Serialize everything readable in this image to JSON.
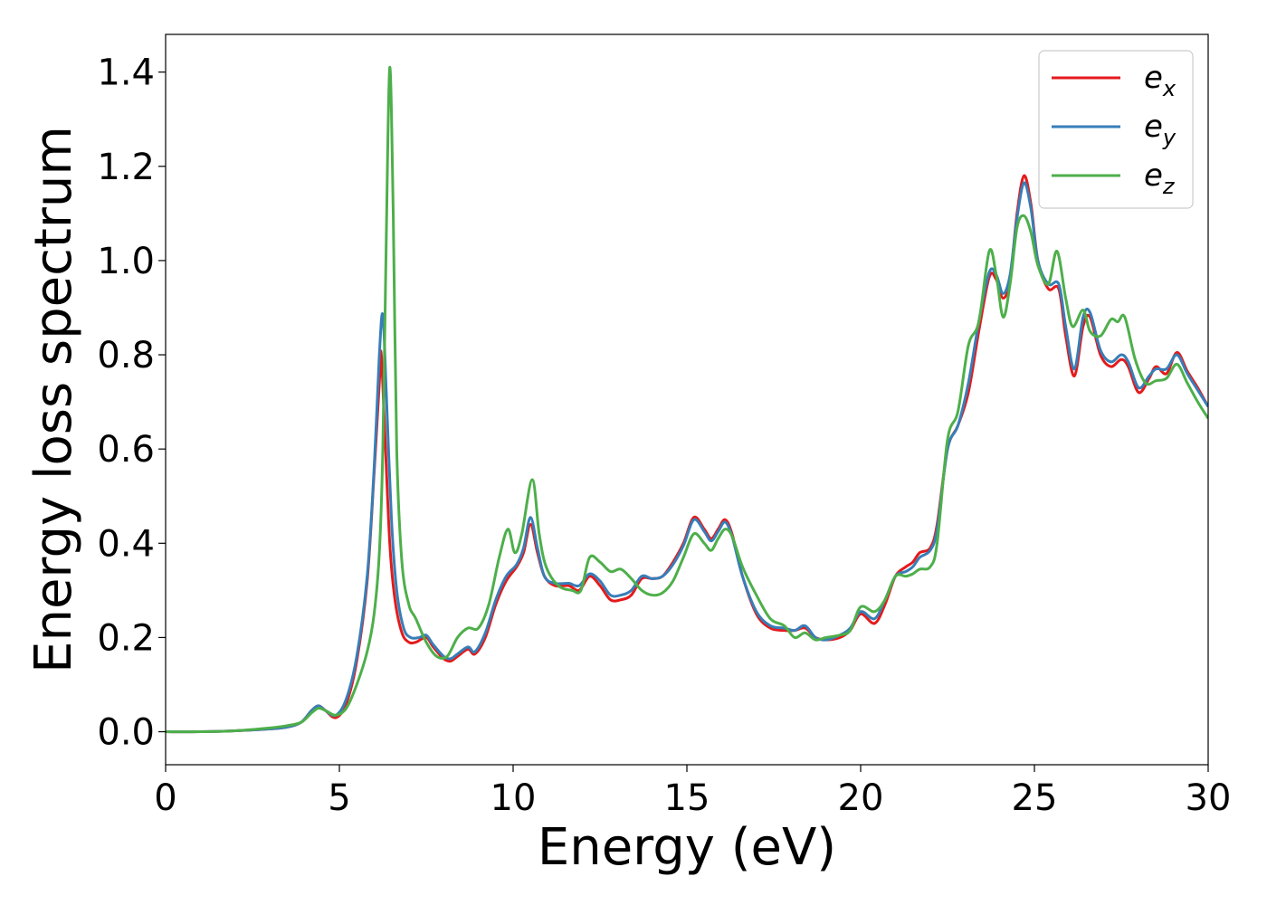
{
  "chart_data": {
    "type": "line",
    "title": "",
    "xlabel": "Energy (eV)",
    "ylabel": "Energy loss spectrum",
    "xlim": [
      0,
      30
    ],
    "ylim": [
      -0.07,
      1.48
    ],
    "xticks": [
      "0",
      "5",
      "10",
      "15",
      "20",
      "25",
      "30"
    ],
    "yticks": [
      "0.0",
      "0.2",
      "0.4",
      "0.6",
      "0.8",
      "1.0",
      "1.2",
      "1.4"
    ],
    "grid": false,
    "legend_position": "top-right",
    "series": [
      {
        "name": "e_x",
        "label_base": "e",
        "label_sub": "x",
        "color": "#e41a1c",
        "points": [
          [
            0,
            0.0
          ],
          [
            1,
            0.0
          ],
          [
            2,
            0.002
          ],
          [
            3,
            0.006
          ],
          [
            3.5,
            0.01
          ],
          [
            3.9,
            0.02
          ],
          [
            4.2,
            0.045
          ],
          [
            4.4,
            0.055
          ],
          [
            4.6,
            0.045
          ],
          [
            4.9,
            0.03
          ],
          [
            5.2,
            0.06
          ],
          [
            5.5,
            0.15
          ],
          [
            5.8,
            0.32
          ],
          [
            6.0,
            0.55
          ],
          [
            6.15,
            0.74
          ],
          [
            6.2,
            0.805
          ],
          [
            6.3,
            0.65
          ],
          [
            6.45,
            0.4
          ],
          [
            6.6,
            0.28
          ],
          [
            6.8,
            0.21
          ],
          [
            7.0,
            0.19
          ],
          [
            7.2,
            0.19
          ],
          [
            7.5,
            0.2
          ],
          [
            7.7,
            0.18
          ],
          [
            8.0,
            0.155
          ],
          [
            8.2,
            0.15
          ],
          [
            8.4,
            0.16
          ],
          [
            8.7,
            0.175
          ],
          [
            8.9,
            0.165
          ],
          [
            9.2,
            0.2
          ],
          [
            9.5,
            0.27
          ],
          [
            9.8,
            0.32
          ],
          [
            10.1,
            0.35
          ],
          [
            10.3,
            0.38
          ],
          [
            10.5,
            0.44
          ],
          [
            10.7,
            0.38
          ],
          [
            10.9,
            0.33
          ],
          [
            11.2,
            0.31
          ],
          [
            11.6,
            0.31
          ],
          [
            11.9,
            0.3
          ],
          [
            12.2,
            0.33
          ],
          [
            12.5,
            0.31
          ],
          [
            12.8,
            0.28
          ],
          [
            13.1,
            0.28
          ],
          [
            13.4,
            0.29
          ],
          [
            13.7,
            0.325
          ],
          [
            14.0,
            0.325
          ],
          [
            14.3,
            0.33
          ],
          [
            14.6,
            0.36
          ],
          [
            14.9,
            0.4
          ],
          [
            15.2,
            0.455
          ],
          [
            15.5,
            0.43
          ],
          [
            15.7,
            0.41
          ],
          [
            15.9,
            0.43
          ],
          [
            16.1,
            0.45
          ],
          [
            16.3,
            0.42
          ],
          [
            16.6,
            0.33
          ],
          [
            17.0,
            0.25
          ],
          [
            17.4,
            0.22
          ],
          [
            17.8,
            0.215
          ],
          [
            18.1,
            0.215
          ],
          [
            18.4,
            0.22
          ],
          [
            18.7,
            0.2
          ],
          [
            19.0,
            0.195
          ],
          [
            19.4,
            0.2
          ],
          [
            19.7,
            0.215
          ],
          [
            20.0,
            0.25
          ],
          [
            20.4,
            0.23
          ],
          [
            20.7,
            0.27
          ],
          [
            21.0,
            0.33
          ],
          [
            21.3,
            0.35
          ],
          [
            21.5,
            0.36
          ],
          [
            21.7,
            0.38
          ],
          [
            22.0,
            0.39
          ],
          [
            22.2,
            0.44
          ],
          [
            22.5,
            0.6
          ],
          [
            22.8,
            0.65
          ],
          [
            23.1,
            0.72
          ],
          [
            23.4,
            0.85
          ],
          [
            23.7,
            0.965
          ],
          [
            23.9,
            0.96
          ],
          [
            24.1,
            0.92
          ],
          [
            24.3,
            0.96
          ],
          [
            24.5,
            1.1
          ],
          [
            24.7,
            1.18
          ],
          [
            24.9,
            1.12
          ],
          [
            25.1,
            1.0
          ],
          [
            25.4,
            0.94
          ],
          [
            25.7,
            0.94
          ],
          [
            25.9,
            0.84
          ],
          [
            26.15,
            0.755
          ],
          [
            26.4,
            0.86
          ],
          [
            26.6,
            0.88
          ],
          [
            26.9,
            0.8
          ],
          [
            27.2,
            0.775
          ],
          [
            27.5,
            0.79
          ],
          [
            27.7,
            0.775
          ],
          [
            28.0,
            0.72
          ],
          [
            28.3,
            0.75
          ],
          [
            28.5,
            0.775
          ],
          [
            28.8,
            0.76
          ],
          [
            29.1,
            0.805
          ],
          [
            29.4,
            0.765
          ],
          [
            29.7,
            0.73
          ],
          [
            30.0,
            0.69
          ]
        ]
      },
      {
        "name": "e_y",
        "label_base": "e",
        "label_sub": "y",
        "color": "#377eb8",
        "points": [
          [
            0,
            0.0
          ],
          [
            1,
            0.0
          ],
          [
            2,
            0.002
          ],
          [
            3,
            0.006
          ],
          [
            3.5,
            0.01
          ],
          [
            3.9,
            0.02
          ],
          [
            4.2,
            0.045
          ],
          [
            4.4,
            0.055
          ],
          [
            4.6,
            0.045
          ],
          [
            4.9,
            0.035
          ],
          [
            5.2,
            0.07
          ],
          [
            5.5,
            0.16
          ],
          [
            5.8,
            0.33
          ],
          [
            6.0,
            0.56
          ],
          [
            6.15,
            0.8
          ],
          [
            6.25,
            0.885
          ],
          [
            6.35,
            0.72
          ],
          [
            6.5,
            0.45
          ],
          [
            6.65,
            0.3
          ],
          [
            6.85,
            0.22
          ],
          [
            7.05,
            0.2
          ],
          [
            7.3,
            0.2
          ],
          [
            7.5,
            0.205
          ],
          [
            7.7,
            0.185
          ],
          [
            8.0,
            0.16
          ],
          [
            8.2,
            0.155
          ],
          [
            8.4,
            0.165
          ],
          [
            8.7,
            0.18
          ],
          [
            8.9,
            0.17
          ],
          [
            9.2,
            0.21
          ],
          [
            9.5,
            0.28
          ],
          [
            9.8,
            0.33
          ],
          [
            10.1,
            0.355
          ],
          [
            10.3,
            0.39
          ],
          [
            10.5,
            0.455
          ],
          [
            10.7,
            0.39
          ],
          [
            10.9,
            0.33
          ],
          [
            11.2,
            0.315
          ],
          [
            11.6,
            0.315
          ],
          [
            11.9,
            0.31
          ],
          [
            12.2,
            0.335
          ],
          [
            12.5,
            0.32
          ],
          [
            12.8,
            0.29
          ],
          [
            13.1,
            0.29
          ],
          [
            13.4,
            0.3
          ],
          [
            13.7,
            0.33
          ],
          [
            14.0,
            0.325
          ],
          [
            14.3,
            0.33
          ],
          [
            14.6,
            0.355
          ],
          [
            14.9,
            0.395
          ],
          [
            15.2,
            0.45
          ],
          [
            15.5,
            0.425
          ],
          [
            15.7,
            0.405
          ],
          [
            15.9,
            0.425
          ],
          [
            16.1,
            0.445
          ],
          [
            16.3,
            0.415
          ],
          [
            16.6,
            0.33
          ],
          [
            17.0,
            0.255
          ],
          [
            17.4,
            0.225
          ],
          [
            17.8,
            0.22
          ],
          [
            18.1,
            0.215
          ],
          [
            18.4,
            0.225
          ],
          [
            18.7,
            0.2
          ],
          [
            19.0,
            0.195
          ],
          [
            19.4,
            0.205
          ],
          [
            19.7,
            0.22
          ],
          [
            20.0,
            0.255
          ],
          [
            20.4,
            0.24
          ],
          [
            20.7,
            0.28
          ],
          [
            21.0,
            0.33
          ],
          [
            21.3,
            0.34
          ],
          [
            21.5,
            0.35
          ],
          [
            21.7,
            0.37
          ],
          [
            22.0,
            0.385
          ],
          [
            22.2,
            0.43
          ],
          [
            22.5,
            0.6
          ],
          [
            22.8,
            0.65
          ],
          [
            23.1,
            0.74
          ],
          [
            23.4,
            0.87
          ],
          [
            23.7,
            0.975
          ],
          [
            23.9,
            0.97
          ],
          [
            24.1,
            0.93
          ],
          [
            24.3,
            0.97
          ],
          [
            24.5,
            1.09
          ],
          [
            24.7,
            1.165
          ],
          [
            24.9,
            1.11
          ],
          [
            25.1,
            1.0
          ],
          [
            25.4,
            0.95
          ],
          [
            25.7,
            0.95
          ],
          [
            25.9,
            0.86
          ],
          [
            26.15,
            0.77
          ],
          [
            26.4,
            0.88
          ],
          [
            26.6,
            0.89
          ],
          [
            26.9,
            0.81
          ],
          [
            27.2,
            0.785
          ],
          [
            27.5,
            0.8
          ],
          [
            27.7,
            0.785
          ],
          [
            28.0,
            0.73
          ],
          [
            28.3,
            0.755
          ],
          [
            28.5,
            0.77
          ],
          [
            28.8,
            0.77
          ],
          [
            29.1,
            0.8
          ],
          [
            29.4,
            0.76
          ],
          [
            29.7,
            0.725
          ],
          [
            30.0,
            0.69
          ]
        ]
      },
      {
        "name": "e_z",
        "label_base": "e",
        "label_sub": "z",
        "color": "#4daf4a",
        "points": [
          [
            0,
            0.0
          ],
          [
            1,
            0.0
          ],
          [
            2,
            0.002
          ],
          [
            3,
            0.008
          ],
          [
            3.5,
            0.013
          ],
          [
            3.9,
            0.02
          ],
          [
            4.2,
            0.04
          ],
          [
            4.4,
            0.05
          ],
          [
            4.6,
            0.045
          ],
          [
            4.9,
            0.035
          ],
          [
            5.2,
            0.05
          ],
          [
            5.5,
            0.1
          ],
          [
            5.8,
            0.17
          ],
          [
            6.0,
            0.25
          ],
          [
            6.15,
            0.38
          ],
          [
            6.25,
            0.6
          ],
          [
            6.35,
            1.05
          ],
          [
            6.45,
            1.41
          ],
          [
            6.55,
            1.1
          ],
          [
            6.65,
            0.6
          ],
          [
            6.8,
            0.36
          ],
          [
            7.0,
            0.27
          ],
          [
            7.2,
            0.24
          ],
          [
            7.5,
            0.19
          ],
          [
            7.8,
            0.16
          ],
          [
            8.1,
            0.16
          ],
          [
            8.4,
            0.2
          ],
          [
            8.7,
            0.22
          ],
          [
            9.0,
            0.22
          ],
          [
            9.3,
            0.27
          ],
          [
            9.6,
            0.37
          ],
          [
            9.85,
            0.43
          ],
          [
            10.05,
            0.38
          ],
          [
            10.25,
            0.42
          ],
          [
            10.55,
            0.535
          ],
          [
            10.75,
            0.42
          ],
          [
            10.95,
            0.35
          ],
          [
            11.3,
            0.31
          ],
          [
            11.7,
            0.3
          ],
          [
            11.95,
            0.3
          ],
          [
            12.2,
            0.37
          ],
          [
            12.5,
            0.36
          ],
          [
            12.8,
            0.34
          ],
          [
            13.1,
            0.345
          ],
          [
            13.4,
            0.325
          ],
          [
            13.7,
            0.3
          ],
          [
            14.0,
            0.29
          ],
          [
            14.3,
            0.295
          ],
          [
            14.6,
            0.32
          ],
          [
            14.9,
            0.37
          ],
          [
            15.2,
            0.42
          ],
          [
            15.5,
            0.4
          ],
          [
            15.7,
            0.385
          ],
          [
            15.9,
            0.41
          ],
          [
            16.1,
            0.43
          ],
          [
            16.3,
            0.415
          ],
          [
            16.6,
            0.35
          ],
          [
            17.0,
            0.29
          ],
          [
            17.4,
            0.24
          ],
          [
            17.8,
            0.225
          ],
          [
            18.1,
            0.2
          ],
          [
            18.4,
            0.21
          ],
          [
            18.7,
            0.195
          ],
          [
            19.0,
            0.2
          ],
          [
            19.4,
            0.205
          ],
          [
            19.7,
            0.215
          ],
          [
            20.0,
            0.265
          ],
          [
            20.4,
            0.255
          ],
          [
            20.7,
            0.28
          ],
          [
            21.0,
            0.33
          ],
          [
            21.3,
            0.33
          ],
          [
            21.5,
            0.335
          ],
          [
            21.7,
            0.345
          ],
          [
            22.0,
            0.35
          ],
          [
            22.2,
            0.4
          ],
          [
            22.5,
            0.62
          ],
          [
            22.8,
            0.68
          ],
          [
            23.1,
            0.82
          ],
          [
            23.4,
            0.87
          ],
          [
            23.7,
            1.02
          ],
          [
            23.9,
            0.97
          ],
          [
            24.1,
            0.88
          ],
          [
            24.3,
            0.95
          ],
          [
            24.5,
            1.07
          ],
          [
            24.7,
            1.095
          ],
          [
            24.9,
            1.06
          ],
          [
            25.1,
            0.99
          ],
          [
            25.4,
            0.95
          ],
          [
            25.65,
            1.02
          ],
          [
            25.9,
            0.92
          ],
          [
            26.1,
            0.86
          ],
          [
            26.4,
            0.895
          ],
          [
            26.6,
            0.85
          ],
          [
            26.9,
            0.84
          ],
          [
            27.2,
            0.875
          ],
          [
            27.4,
            0.87
          ],
          [
            27.6,
            0.88
          ],
          [
            27.9,
            0.79
          ],
          [
            28.2,
            0.74
          ],
          [
            28.5,
            0.745
          ],
          [
            28.8,
            0.75
          ],
          [
            29.1,
            0.78
          ],
          [
            29.4,
            0.74
          ],
          [
            29.7,
            0.7
          ],
          [
            30.0,
            0.665
          ]
        ]
      }
    ]
  }
}
